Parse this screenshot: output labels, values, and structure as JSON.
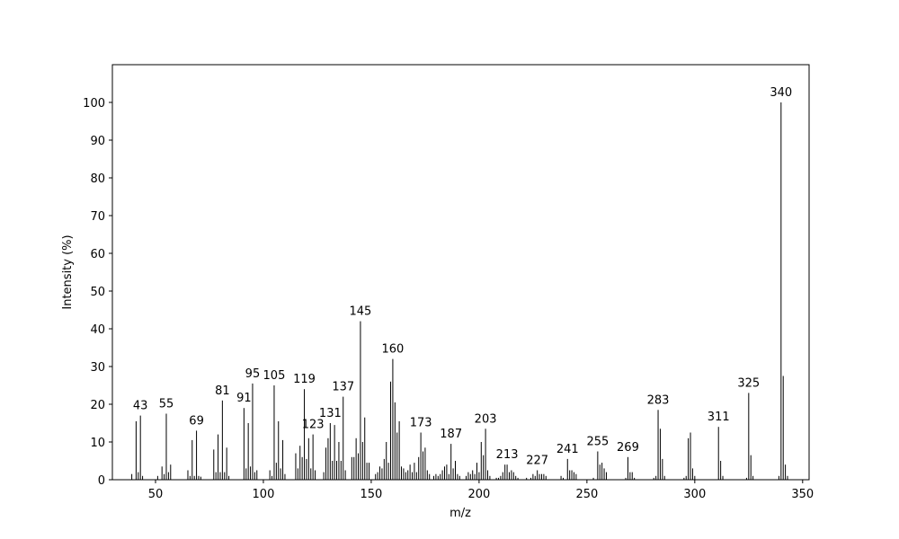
{
  "chart_data": {
    "type": "stem",
    "xlabel": "m/z",
    "ylabel": "Intensity (%)",
    "color": "#000000",
    "x": [
      39,
      41,
      42,
      43,
      44,
      51,
      53,
      54,
      55,
      56,
      57,
      65,
      66,
      67,
      68,
      69,
      70,
      71,
      77,
      78,
      79,
      80,
      81,
      82,
      83,
      84,
      91,
      92,
      93,
      94,
      95,
      96,
      97,
      103,
      104,
      105,
      106,
      107,
      108,
      109,
      110,
      115,
      116,
      117,
      118,
      119,
      120,
      121,
      122,
      123,
      124,
      128,
      129,
      130,
      131,
      132,
      133,
      134,
      135,
      136,
      137,
      138,
      141,
      142,
      143,
      144,
      145,
      146,
      147,
      148,
      149,
      152,
      153,
      154,
      155,
      156,
      157,
      158,
      159,
      160,
      161,
      162,
      163,
      164,
      165,
      166,
      167,
      168,
      169,
      170,
      171,
      172,
      173,
      174,
      175,
      176,
      177,
      179,
      180,
      181,
      182,
      183,
      184,
      185,
      186,
      187,
      188,
      189,
      190,
      191,
      194,
      195,
      196,
      197,
      198,
      199,
      200,
      201,
      202,
      203,
      204,
      205,
      208,
      209,
      210,
      211,
      212,
      213,
      214,
      215,
      216,
      217,
      218,
      222,
      224,
      225,
      226,
      227,
      228,
      229,
      230,
      231,
      238,
      239,
      241,
      242,
      243,
      244,
      245,
      253,
      255,
      256,
      257,
      258,
      259,
      268,
      269,
      270,
      271,
      272,
      281,
      282,
      283,
      284,
      285,
      286,
      295,
      296,
      297,
      298,
      299,
      300,
      311,
      312,
      313,
      324,
      325,
      326,
      327,
      339,
      340,
      341,
      342,
      343
    ],
    "values": [
      1.5,
      15.5,
      2,
      17,
      1,
      1,
      3.5,
      1.5,
      17.5,
      2,
      4,
      2.5,
      1,
      10.5,
      1,
      13,
      1,
      0.8,
      8,
      2,
      12,
      2,
      21,
      2,
      8.5,
      1,
      19,
      3,
      15,
      3.5,
      25.5,
      2,
      2.5,
      2.5,
      1,
      25,
      4.5,
      15.5,
      3,
      10.5,
      1.5,
      7,
      3,
      9,
      6,
      24,
      5.5,
      11,
      3,
      12,
      2.5,
      2,
      8.5,
      11,
      15,
      5,
      14.5,
      5,
      10,
      5,
      22,
      2.5,
      6,
      6,
      11,
      7,
      42,
      10,
      16.5,
      4.5,
      4.5,
      1.5,
      2,
      3.5,
      3,
      5.5,
      10,
      4.5,
      26,
      32,
      20.5,
      12.5,
      15.5,
      3.5,
      3,
      2,
      2.5,
      4,
      2,
      4.5,
      2,
      6,
      12.5,
      7.5,
      8.5,
      2.5,
      1.5,
      1,
      1.5,
      1,
      1.5,
      2.5,
      3.5,
      4,
      1.5,
      9.5,
      3,
      5,
      1.5,
      1,
      1,
      2,
      1.5,
      2.5,
      1.5,
      4.5,
      2,
      10,
      6.5,
      13.5,
      2.5,
      1,
      0.5,
      0.5,
      1,
      2,
      4,
      4,
      2,
      2.5,
      2,
      1,
      0.5,
      0.5,
      0.5,
      1.5,
      1,
      2.5,
      1.5,
      1.5,
      1.5,
      1,
      1,
      0.5,
      5.5,
      2.5,
      2.5,
      2,
      1.5,
      0.5,
      7.5,
      4,
      4.5,
      3,
      2,
      0.5,
      6,
      2,
      2,
      0.5,
      0.5,
      1,
      18.5,
      13.5,
      5.5,
      1,
      0.5,
      1,
      11,
      12.5,
      3,
      1,
      14,
      5,
      1,
      0.5,
      23,
      6.5,
      1,
      1,
      100,
      27.5,
      4,
      1
    ],
    "peak_labels": [
      {
        "value": 43,
        "label": "43"
      },
      {
        "value": 55,
        "label": "55"
      },
      {
        "value": 69,
        "label": "69"
      },
      {
        "value": 81,
        "label": "81"
      },
      {
        "value": 91,
        "label": "91"
      },
      {
        "value": 95,
        "label": "95"
      },
      {
        "value": 105,
        "label": "105"
      },
      {
        "value": 119,
        "label": "119"
      },
      {
        "value": 123,
        "label": "123"
      },
      {
        "value": 131,
        "label": "131"
      },
      {
        "value": 137,
        "label": "137"
      },
      {
        "value": 145,
        "label": "145"
      },
      {
        "value": 160,
        "label": "160"
      },
      {
        "value": 173,
        "label": "173"
      },
      {
        "value": 187,
        "label": "187"
      },
      {
        "value": 203,
        "label": "203"
      },
      {
        "value": 213,
        "label": "213"
      },
      {
        "value": 227,
        "label": "227"
      },
      {
        "value": 241,
        "label": "241"
      },
      {
        "value": 255,
        "label": "255"
      },
      {
        "value": 269,
        "label": "269"
      },
      {
        "value": 283,
        "label": "283"
      },
      {
        "value": 311,
        "label": "311"
      },
      {
        "value": 325,
        "label": "325"
      },
      {
        "value": 340,
        "label": "340"
      }
    ],
    "xlim": [
      30,
      353
    ],
    "ylim": [
      0,
      110
    ],
    "xticks": [
      50,
      100,
      150,
      200,
      250,
      300,
      350
    ],
    "yticks": [
      0,
      10,
      20,
      30,
      40,
      50,
      60,
      70,
      80,
      90,
      100
    ]
  }
}
